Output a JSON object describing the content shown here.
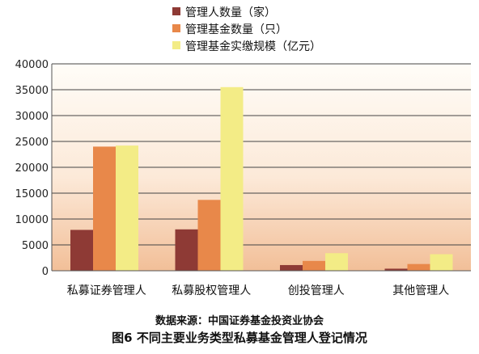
{
  "chart_data": {
    "type": "bar",
    "categories": [
      "私募证券管理人",
      "私募股权管理人",
      "创投管理人",
      "其他管理人"
    ],
    "series": [
      {
        "name": "管理人数量（家）",
        "values": [
          7900,
          8000,
          1100,
          400
        ],
        "color": "#8e3a35"
      },
      {
        "name": "管理基金数量（只）",
        "values": [
          24000,
          13700,
          1900,
          1300
        ],
        "color": "#e8884a"
      },
      {
        "name": "管理基金实缴规模（亿元）",
        "values": [
          24200,
          35500,
          3400,
          3200
        ],
        "color": "#f3ec86"
      }
    ],
    "y_ticks": [
      "0",
      "5000",
      "10000",
      "15000",
      "20000",
      "25000",
      "30000",
      "35000",
      "40000"
    ],
    "ylim": [
      0,
      40000
    ],
    "grid": true,
    "legend": "top-center"
  },
  "source_text": "数据来源：中国证券基金投资业协会",
  "figure_caption": "图6  不同主要业务类型私募基金管理人登记情况"
}
